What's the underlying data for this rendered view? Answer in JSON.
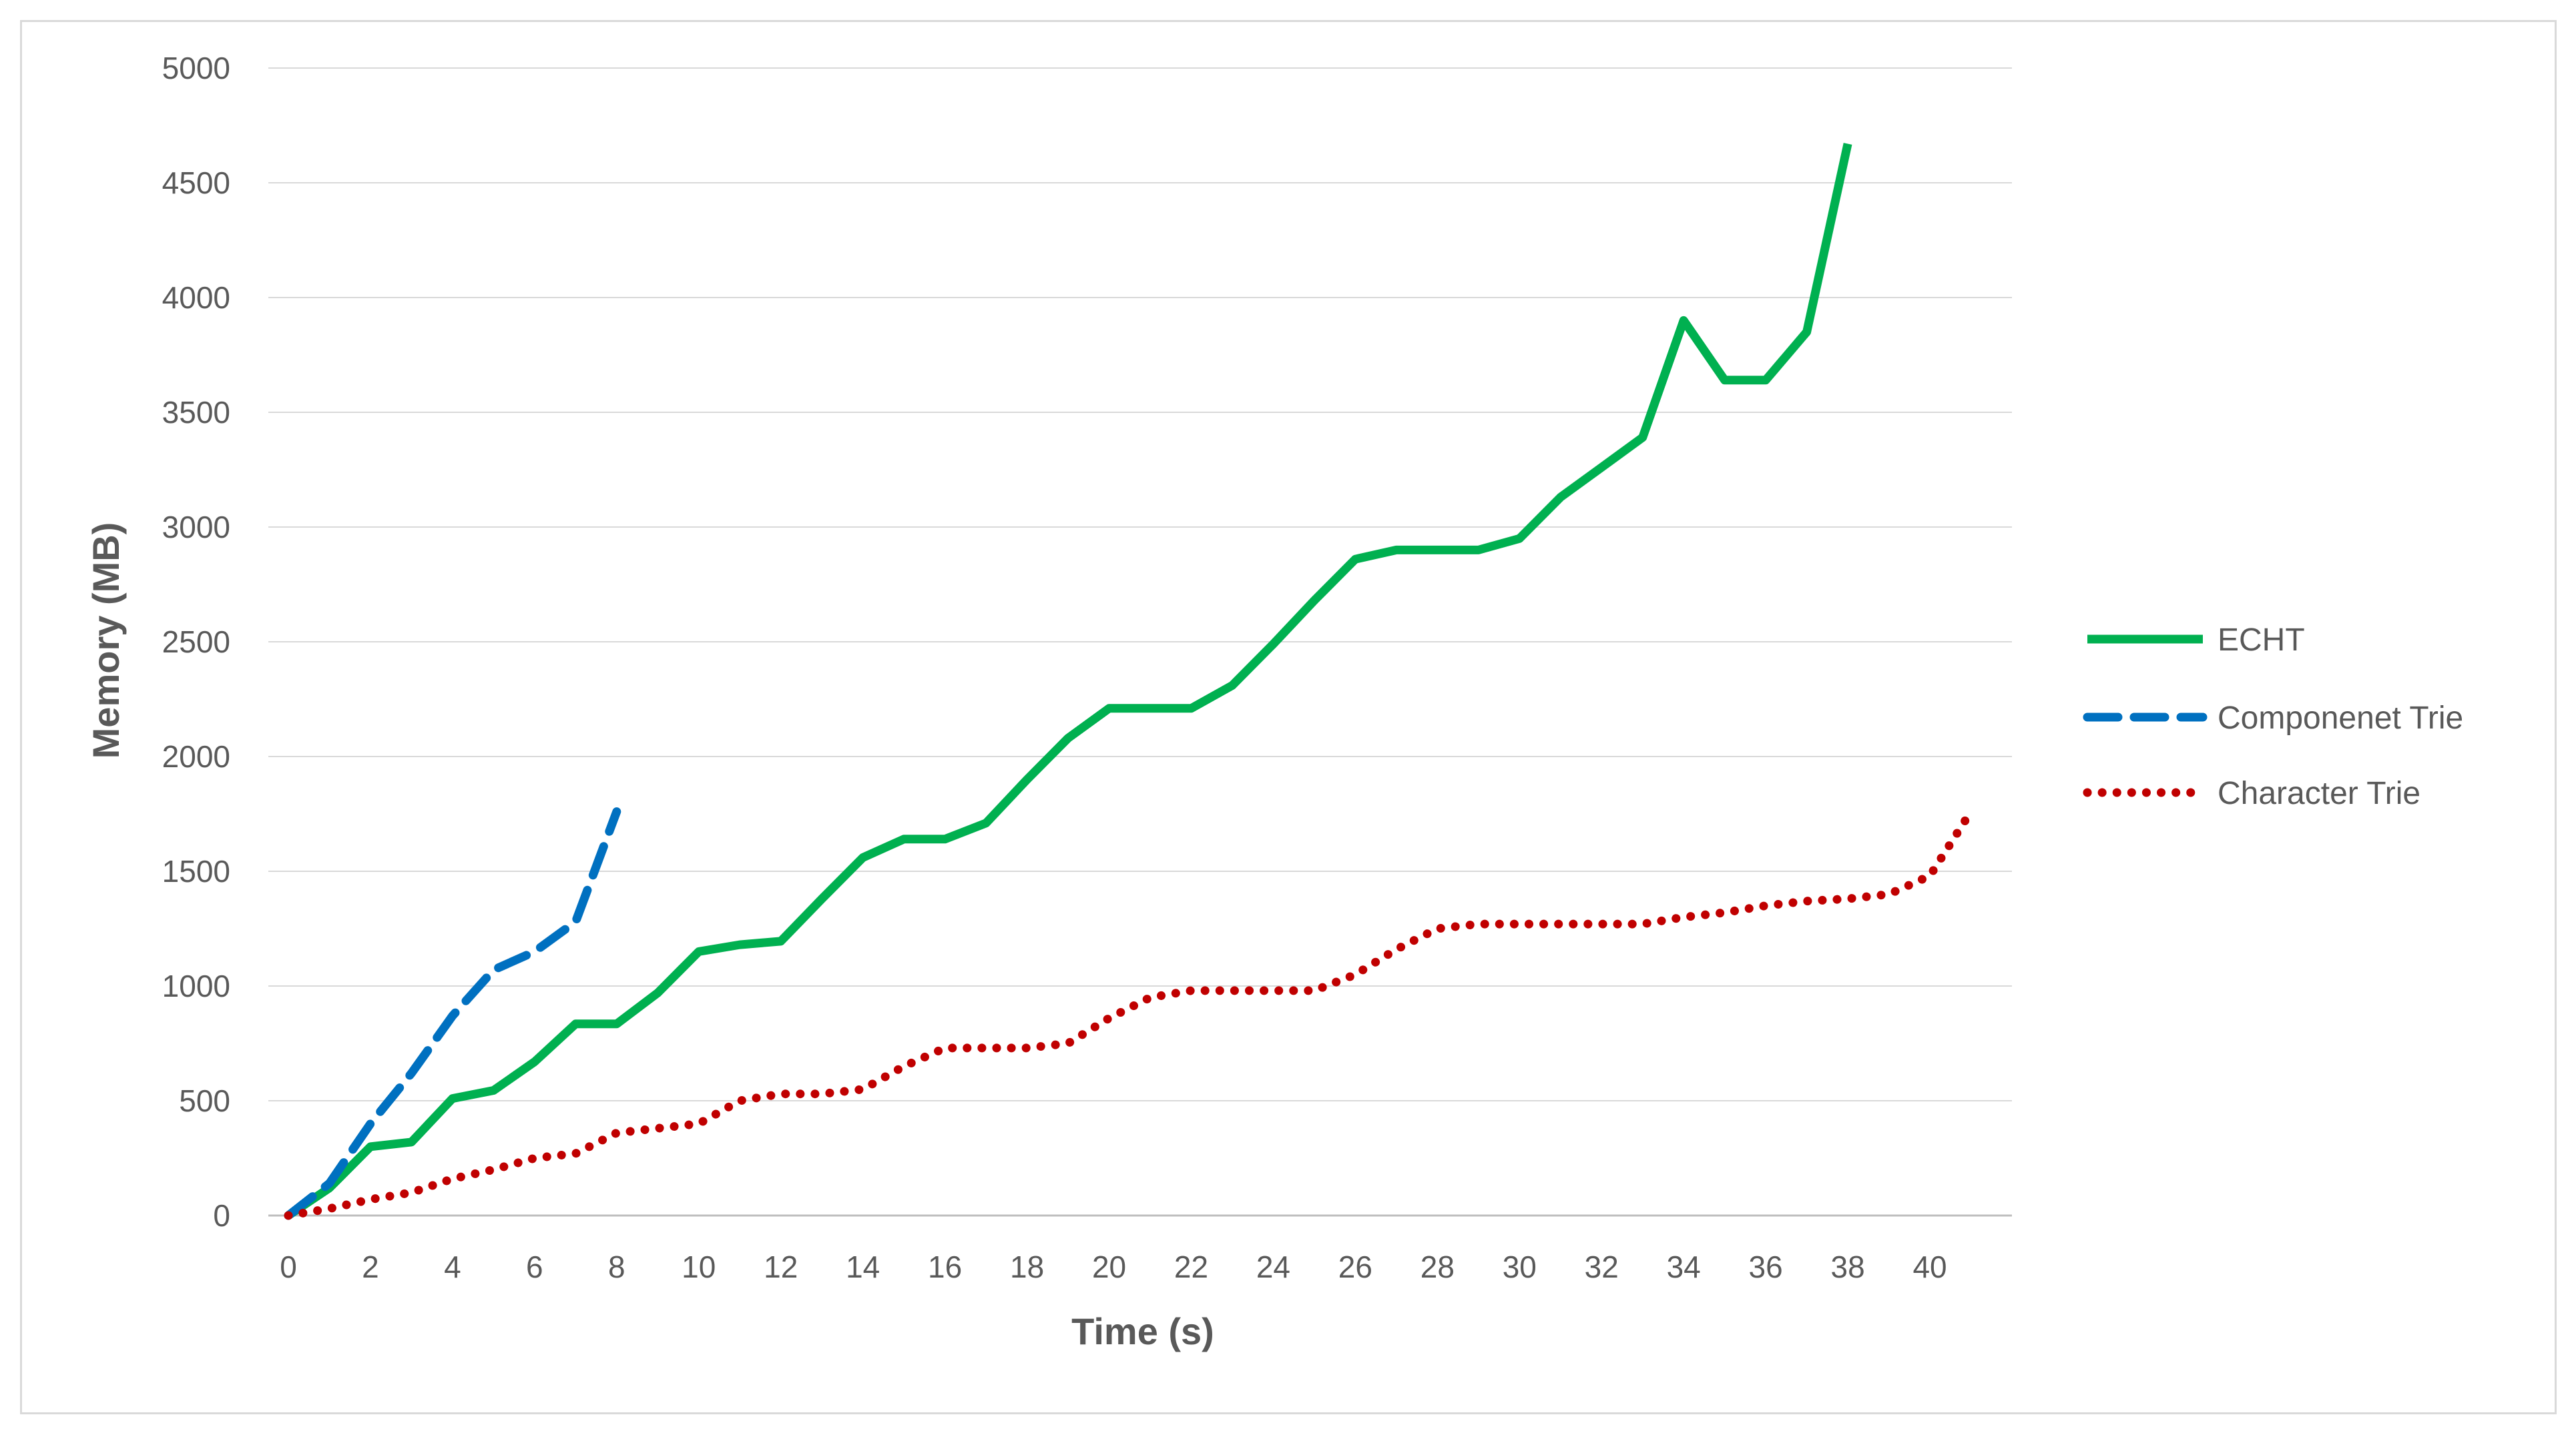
{
  "chart_data": {
    "type": "line",
    "title": "",
    "xlabel": "Time (s)",
    "ylabel": "Memory (MB)",
    "xlim": [
      0,
      42
    ],
    "ylim": [
      0,
      5000
    ],
    "x_ticks": [
      0,
      2,
      4,
      6,
      8,
      10,
      12,
      14,
      16,
      18,
      20,
      22,
      24,
      26,
      28,
      30,
      32,
      34,
      36,
      38,
      40
    ],
    "y_ticks": [
      0,
      500,
      1000,
      1500,
      2000,
      2500,
      3000,
      3500,
      4000,
      4500,
      5000
    ],
    "grid": "horizontal",
    "legend_position": "right",
    "series": [
      {
        "name": "ECHT",
        "color": "#00b050",
        "style": "solid",
        "x": [
          0,
          1,
          2,
          3,
          4,
          5,
          6,
          7,
          8,
          9,
          10,
          11,
          12,
          13,
          14,
          15,
          16,
          17,
          18,
          19,
          20,
          21,
          22,
          23,
          24,
          25,
          26,
          27,
          28,
          29,
          30,
          31,
          32,
          33,
          34,
          35,
          36,
          37,
          38
        ],
        "values": [
          0,
          120,
          300,
          320,
          510,
          545,
          670,
          835,
          835,
          970,
          1150,
          1180,
          1195,
          1380,
          1560,
          1640,
          1640,
          1710,
          1900,
          2080,
          2210,
          2210,
          2210,
          2310,
          2490,
          2680,
          2860,
          2900,
          2900,
          2900,
          2950,
          3130,
          3260,
          3390,
          3900,
          3640,
          3640,
          3850,
          4670
        ]
      },
      {
        "name": "Componenet Trie",
        "color": "#0070c0",
        "style": "dashed",
        "x": [
          0,
          1,
          2,
          3,
          4,
          5,
          6,
          7,
          8
        ],
        "values": [
          0,
          140,
          400,
          620,
          870,
          1070,
          1150,
          1280,
          1760
        ]
      },
      {
        "name": "Character Trie",
        "color": "#c00000",
        "style": "dotted",
        "x": [
          0,
          1,
          2,
          3,
          4,
          5,
          6,
          7,
          8,
          9,
          10,
          11,
          12,
          13,
          14,
          15,
          16,
          17,
          18,
          19,
          20,
          21,
          22,
          23,
          24,
          25,
          26,
          27,
          28,
          29,
          30,
          31,
          32,
          33,
          34,
          35,
          36,
          37,
          38,
          39,
          40,
          41
        ],
        "values": [
          0,
          30,
          70,
          100,
          160,
          200,
          250,
          270,
          360,
          380,
          400,
          500,
          530,
          530,
          550,
          650,
          730,
          730,
          730,
          750,
          860,
          950,
          980,
          980,
          980,
          980,
          1050,
          1160,
          1250,
          1270,
          1270,
          1270,
          1270,
          1270,
          1300,
          1320,
          1350,
          1370,
          1380,
          1400,
          1480,
          1760
        ]
      }
    ]
  }
}
